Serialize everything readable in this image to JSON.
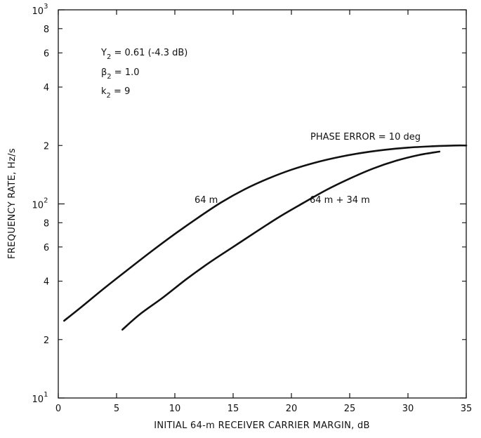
{
  "chart_data": {
    "type": "line",
    "title": "",
    "xlabel": "INITIAL 64-m RECEIVER CARRIER MARGIN, dB",
    "ylabel": "FREQUENCY RATE, Hz/s",
    "xlim": [
      0,
      35
    ],
    "ylim": [
      10,
      1000
    ],
    "yscale": "log",
    "grid": false,
    "x_ticks": [
      "0",
      "5",
      "10",
      "15",
      "20",
      "25",
      "30",
      "35"
    ],
    "y_major_ticks": [
      {
        "base": "10",
        "exp": "1"
      },
      {
        "base": "10",
        "exp": "2"
      },
      {
        "base": "10",
        "exp": "3"
      }
    ],
    "y_minor_ticks": [
      "2",
      "4",
      "6",
      "8"
    ],
    "parameters": [
      {
        "symbol": "Y",
        "sub": "2",
        "text": " = 0.61 (-4.3 dB)"
      },
      {
        "symbol": "β",
        "sub": "2",
        "text": " = 1.0"
      },
      {
        "symbol": "k",
        "sub": "2",
        "text": " = 9"
      }
    ],
    "annotations": [
      "PHASE ERROR = 10 deg"
    ],
    "series": [
      {
        "name": "64 m",
        "x": [
          0.5,
          2,
          4,
          6,
          8,
          10,
          12,
          14,
          16,
          18,
          20,
          22,
          24,
          26,
          28,
          30,
          32,
          34,
          35
        ],
        "y": [
          25,
          29.5,
          37,
          46,
          57,
          70,
          85,
          102,
          119,
          135,
          150,
          163,
          174,
          183,
          190,
          195,
          198,
          200,
          200
        ]
      },
      {
        "name": "64 m + 34 m",
        "x": [
          5.5,
          7,
          9,
          11,
          13,
          15,
          17,
          19,
          21,
          23,
          25,
          27,
          29,
          31,
          32.7
        ],
        "y": [
          22.5,
          27,
          33,
          41,
          50,
          60,
          72,
          86,
          101,
          118,
          135,
          152,
          167,
          179,
          186
        ]
      }
    ]
  }
}
